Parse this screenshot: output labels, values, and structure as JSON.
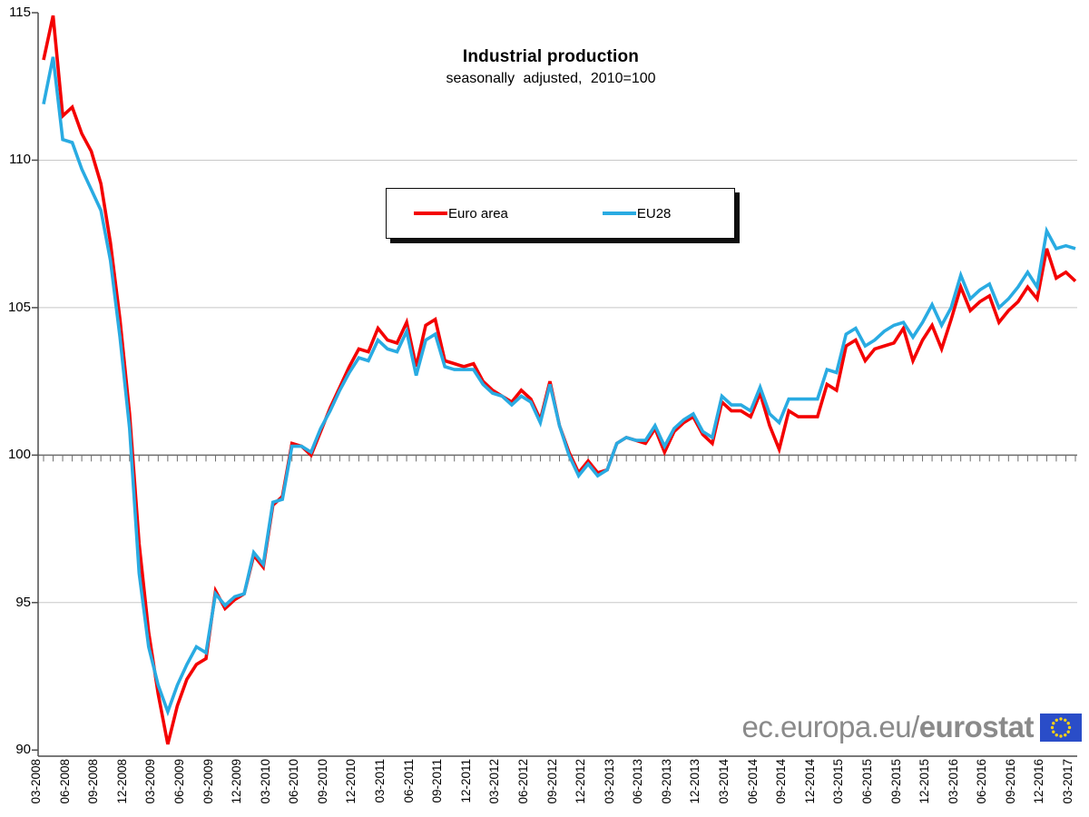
{
  "title": {
    "main": "Industrial production",
    "subtitle": "seasonally adjusted, 2010=100"
  },
  "legend": {
    "items": [
      {
        "label": "Euro area",
        "color": "#f40000"
      },
      {
        "label": "EU28",
        "color": "#29abe2"
      }
    ]
  },
  "y_axis": {
    "tick_labels": [
      "90",
      "95",
      "100",
      "105",
      "110",
      "115"
    ],
    "tick_values": [
      90,
      95,
      100,
      105,
      110,
      115
    ]
  },
  "x_axis": {
    "tick_labels": [
      "03-2008",
      "06-2008",
      "09-2008",
      "12-2008",
      "03-2009",
      "06-2009",
      "09-2009",
      "12-2009",
      "03-2010",
      "06-2010",
      "09-2010",
      "12-2010",
      "03-2011",
      "06-2011",
      "09-2011",
      "12-2011",
      "03-2012",
      "06-2012",
      "09-2012",
      "12-2012",
      "03-2013",
      "06-2013",
      "09-2013",
      "12-2013",
      "03-2014",
      "06-2014",
      "09-2014",
      "12-2014",
      "03-2015",
      "06-2015",
      "09-2015",
      "12-2015",
      "03-2016",
      "06-2016",
      "09-2016",
      "12-2016",
      "03-2017"
    ]
  },
  "logo": {
    "text_regular": "ec.europa.eu/",
    "text_bold": "eurostat",
    "flag_blue": "#2a4dc8",
    "star_yellow": "#f7d117"
  },
  "colors": {
    "euro_area_line": "#f40000",
    "eu28_line": "#29abe2",
    "gridline": "#c8c8c8",
    "baseline_100": "#6e6e6e",
    "axis": "#4d4d4d",
    "text": "#000000",
    "logo_gray": "#8a8a8a"
  },
  "chart_data": {
    "type": "line",
    "title": "Industrial production",
    "subtitle": "seasonally adjusted, 2010=100",
    "x_start": "2008-03",
    "x_end": "2017-03",
    "x_frequency": "monthly",
    "x_tick_labels_shown": "quarterly",
    "ylim": [
      90,
      115
    ],
    "grid": "horizontal",
    "legend_position": "inside-top-center",
    "series": [
      {
        "name": "Euro area",
        "color": "#f40000",
        "values": [
          113.4,
          114.9,
          111.5,
          111.8,
          110.9,
          110.3,
          109.2,
          107.2,
          104.6,
          101.4,
          97.0,
          94.0,
          91.9,
          90.2,
          91.5,
          92.4,
          92.9,
          93.1,
          95.4,
          94.8,
          95.1,
          95.3,
          96.6,
          96.2,
          98.3,
          98.6,
          100.4,
          100.3,
          100.0,
          100.8,
          101.6,
          102.3,
          103.0,
          103.6,
          103.5,
          104.3,
          103.9,
          103.8,
          104.5,
          103.0,
          104.4,
          104.6,
          103.2,
          103.1,
          103.0,
          103.1,
          102.5,
          102.2,
          102.0,
          101.8,
          102.2,
          101.9,
          101.2,
          102.5,
          101.0,
          100.1,
          99.4,
          99.8,
          99.4,
          99.5,
          100.4,
          100.6,
          100.5,
          100.4,
          100.9,
          100.1,
          100.8,
          101.1,
          101.3,
          100.7,
          100.4,
          101.8,
          101.5,
          101.5,
          101.3,
          102.1,
          101.0,
          100.2,
          101.5,
          101.3,
          101.3,
          101.3,
          102.4,
          102.2,
          103.7,
          103.9,
          103.2,
          103.6,
          103.7,
          103.8,
          104.3,
          103.2,
          103.9,
          104.4,
          103.6,
          104.6,
          105.7,
          104.9,
          105.2,
          105.4,
          104.5,
          104.9,
          105.2,
          105.7,
          105.3,
          107.0,
          106.0,
          106.2,
          105.9
        ]
      },
      {
        "name": "EU28",
        "color": "#29abe2",
        "values": [
          111.9,
          113.5,
          110.7,
          110.6,
          109.7,
          109.0,
          108.3,
          106.6,
          104.0,
          100.9,
          96.0,
          93.5,
          92.2,
          91.3,
          92.2,
          92.9,
          93.5,
          93.3,
          95.3,
          94.9,
          95.2,
          95.3,
          96.7,
          96.3,
          98.4,
          98.5,
          100.3,
          100.3,
          100.1,
          100.9,
          101.5,
          102.2,
          102.8,
          103.3,
          103.2,
          103.9,
          103.6,
          103.5,
          104.2,
          102.7,
          103.9,
          104.1,
          103.0,
          102.9,
          102.9,
          102.9,
          102.4,
          102.1,
          102.0,
          101.7,
          102.0,
          101.8,
          101.1,
          102.4,
          101.0,
          100.0,
          99.3,
          99.7,
          99.3,
          99.5,
          100.4,
          100.6,
          100.5,
          100.5,
          101.0,
          100.3,
          100.9,
          101.2,
          101.4,
          100.8,
          100.6,
          102.0,
          101.7,
          101.7,
          101.5,
          102.3,
          101.4,
          101.1,
          101.9,
          101.9,
          101.9,
          101.9,
          102.9,
          102.8,
          104.1,
          104.3,
          103.7,
          103.9,
          104.2,
          104.4,
          104.5,
          104.0,
          104.5,
          105.1,
          104.4,
          105.0,
          106.1,
          105.3,
          105.6,
          105.8,
          105.0,
          105.3,
          105.7,
          106.2,
          105.7,
          107.6,
          107.0,
          107.1,
          107.0
        ]
      }
    ]
  }
}
